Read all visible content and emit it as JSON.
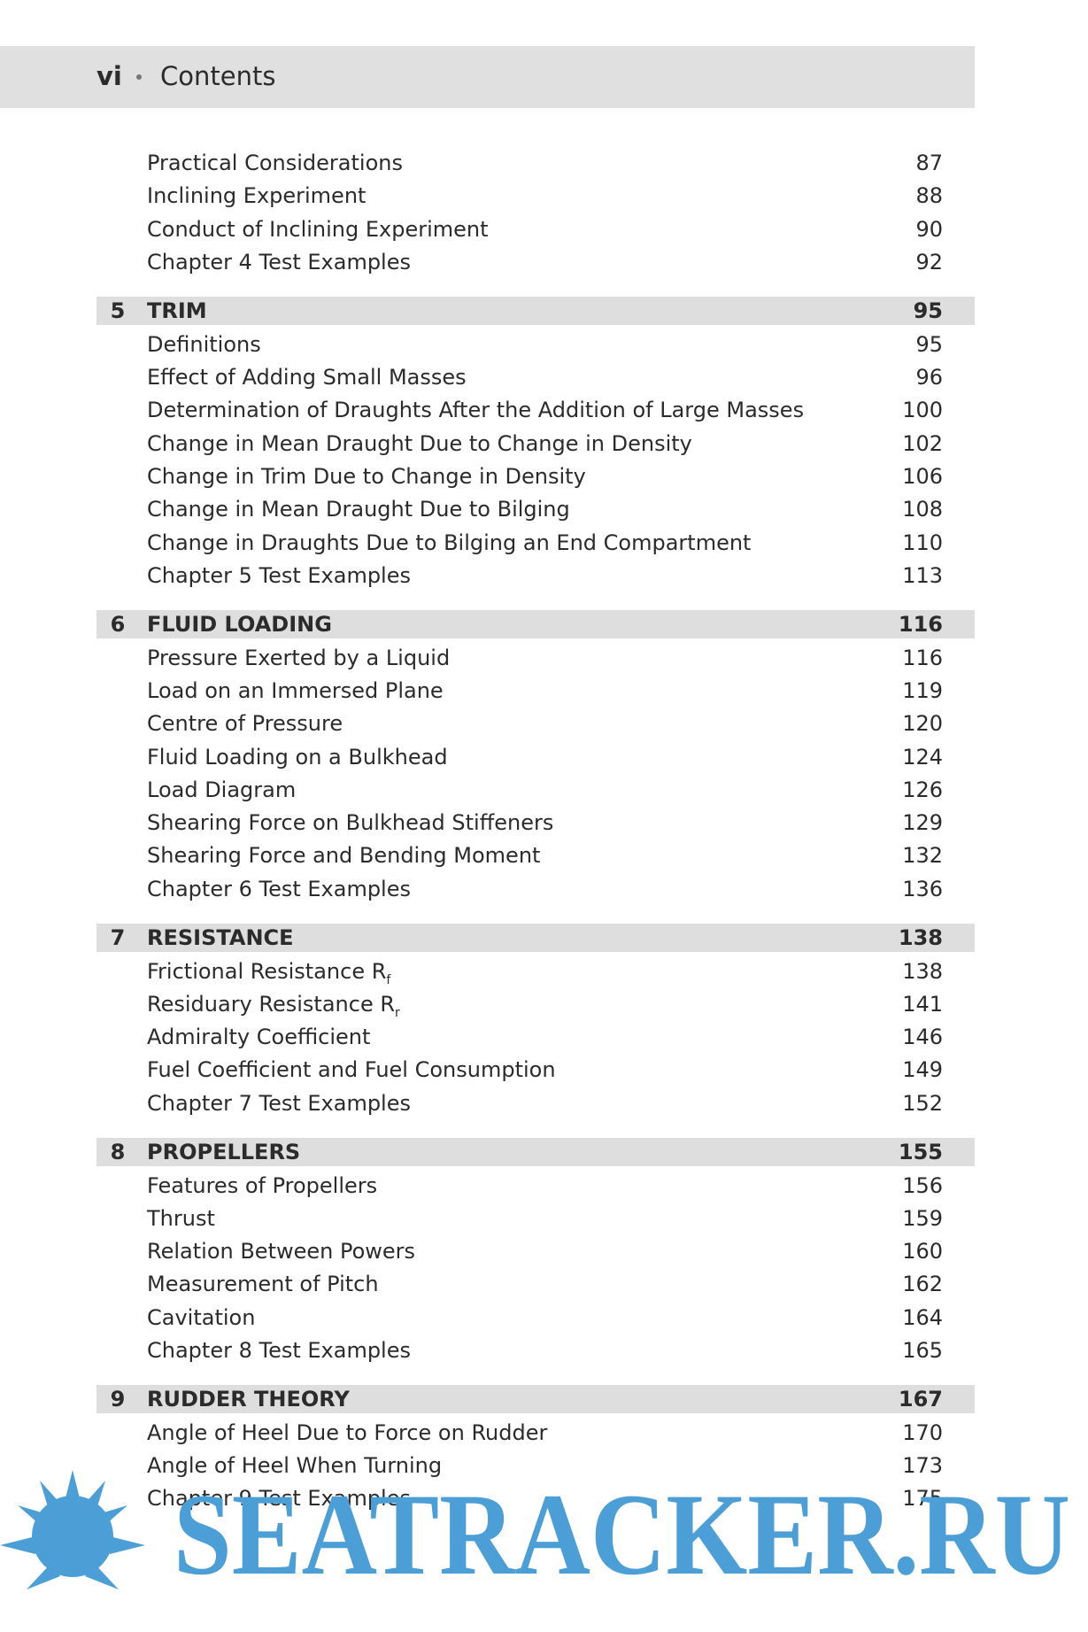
{
  "header": {
    "page": "vi",
    "title": "Contents"
  },
  "sections": [
    {
      "entries": [
        {
          "title": "Practical Considerations",
          "page": 87
        },
        {
          "title": "Inclining Experiment",
          "page": 88
        },
        {
          "title": "Conduct of Inclining Experiment",
          "page": 90
        },
        {
          "title": "Chapter 4 Test Examples",
          "page": 92
        }
      ]
    },
    {
      "number": 5,
      "title": "TRIM",
      "page": 95,
      "entries": [
        {
          "title": "Definitions",
          "page": 95
        },
        {
          "title": "Effect of Adding Small Masses",
          "page": 96
        },
        {
          "title": "Determination of Draughts After the Addition of Large Masses",
          "page": 100
        },
        {
          "title": "Change in Mean Draught Due to Change in Density",
          "page": 102
        },
        {
          "title": "Change in Trim Due to Change in Density",
          "page": 106
        },
        {
          "title": "Change in Mean Draught Due to Bilging",
          "page": 108
        },
        {
          "title": "Change in Draughts Due to Bilging an End Compartment",
          "page": 110
        },
        {
          "title": "Chapter 5 Test Examples",
          "page": 113
        }
      ]
    },
    {
      "number": 6,
      "title": "FLUID LOADING",
      "page": 116,
      "entries": [
        {
          "title": "Pressure Exerted by a Liquid",
          "page": 116
        },
        {
          "title": "Load on an Immersed Plane",
          "page": 119
        },
        {
          "title": "Centre of Pressure",
          "page": 120
        },
        {
          "title": "Fluid Loading on a Bulkhead",
          "page": 124
        },
        {
          "title": "Load Diagram",
          "page": 126
        },
        {
          "title": "Shearing Force on Bulkhead Stiffeners",
          "page": 129
        },
        {
          "title": "Shearing Force and Bending Moment",
          "page": 132
        },
        {
          "title": "Chapter 6 Test Examples",
          "page": 136
        }
      ]
    },
    {
      "number": 7,
      "title": "RESISTANCE",
      "page": 138,
      "entries": [
        {
          "title": "Frictional Resistance R",
          "sub": "f",
          "page": 138
        },
        {
          "title": "Residuary Resistance R",
          "sub": "r",
          "page": 141
        },
        {
          "title": "Admiralty Coefficient",
          "page": 146
        },
        {
          "title": "Fuel Coefficient and Fuel Consumption",
          "page": 149
        },
        {
          "title": "Chapter 7 Test Examples",
          "page": 152
        }
      ]
    },
    {
      "number": 8,
      "title": "PROPELLERS",
      "page": 155,
      "entries": [
        {
          "title": "Features of Propellers",
          "page": 156
        },
        {
          "title": "Thrust",
          "page": 159
        },
        {
          "title": "Relation Between Powers",
          "page": 160
        },
        {
          "title": "Measurement of Pitch",
          "page": 162
        },
        {
          "title": "Cavitation",
          "page": 164
        },
        {
          "title": "Chapter 8 Test Examples",
          "page": 165
        }
      ]
    },
    {
      "number": 9,
      "title": "RUDDER THEORY",
      "page": 167,
      "entries": [
        {
          "title": "Angle of Heel Due to Force on Rudder",
          "page": 170
        },
        {
          "title": "Angle of Heel When Turning",
          "page": 173
        },
        {
          "title": "Chapter 9 Test Examples",
          "page": 175
        }
      ]
    }
  ],
  "watermark": "SEATRACKER.RU"
}
